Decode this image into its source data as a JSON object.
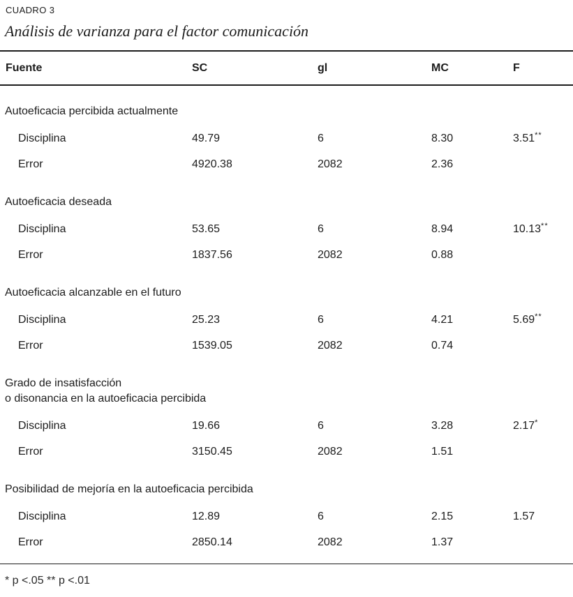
{
  "table": {
    "label": "CUADRO 3",
    "title": "Análisis de varianza para el factor comunicación",
    "columns": [
      "Fuente",
      "SC",
      "gl",
      "MC",
      "F"
    ],
    "sections": [
      {
        "header": "Autoeficacia percibida actualmente",
        "rows": [
          {
            "fuente": "Disciplina",
            "sc": "49.79",
            "gl": "6",
            "mc": "8.30",
            "f": "3.51",
            "sig": "**"
          },
          {
            "fuente": "Error",
            "sc": "4920.38",
            "gl": "2082",
            "mc": "2.36",
            "f": "",
            "sig": ""
          }
        ]
      },
      {
        "header": "Autoeficacia deseada",
        "rows": [
          {
            "fuente": "Disciplina",
            "sc": "53.65",
            "gl": "6",
            "mc": "8.94",
            "f": "10.13",
            "sig": "**"
          },
          {
            "fuente": "Error",
            "sc": "1837.56",
            "gl": "2082",
            "mc": "0.88",
            "f": "",
            "sig": ""
          }
        ]
      },
      {
        "header": "Autoeficacia alcanzable en el futuro",
        "rows": [
          {
            "fuente": "Disciplina",
            "sc": "25.23",
            "gl": "6",
            "mc": "4.21",
            "f": "5.69",
            "sig": "**"
          },
          {
            "fuente": "Error",
            "sc": "1539.05",
            "gl": "2082",
            "mc": "0.74",
            "f": "",
            "sig": ""
          }
        ]
      },
      {
        "header": "Grado de insatisfacción\no disonancia en la autoeficacia percibida",
        "rows": [
          {
            "fuente": "Disciplina",
            "sc": "19.66",
            "gl": "6",
            "mc": "3.28",
            "f": "2.17",
            "sig": "*"
          },
          {
            "fuente": "Error",
            "sc": "3150.45",
            "gl": "2082",
            "mc": "1.51",
            "f": "",
            "sig": ""
          }
        ]
      },
      {
        "header": "Posibilidad de mejoría en la autoeficacia percibida",
        "rows": [
          {
            "fuente": "Disciplina",
            "sc": "12.89",
            "gl": "6",
            "mc": "2.15",
            "f": "1.57",
            "sig": ""
          },
          {
            "fuente": "Error",
            "sc": "2850.14",
            "gl": "2082",
            "mc": "1.37",
            "f": "",
            "sig": ""
          }
        ]
      }
    ],
    "footnote": "* p <.05 ** p <.01"
  }
}
